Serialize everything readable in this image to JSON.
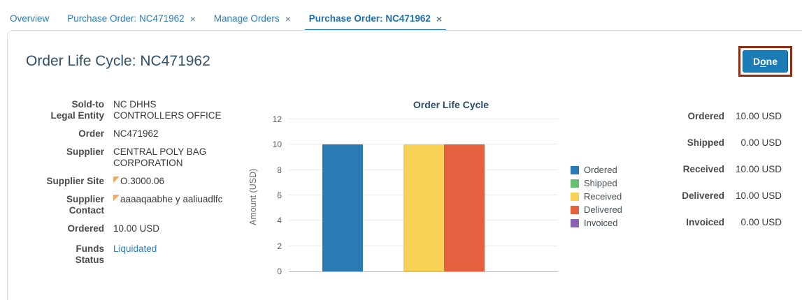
{
  "tabs": [
    {
      "label": "Overview",
      "closable": false,
      "active": false
    },
    {
      "label": "Purchase Order: NC471962",
      "closable": true,
      "active": false
    },
    {
      "label": "Manage Orders",
      "closable": true,
      "active": false
    },
    {
      "label": "Purchase Order: NC471962",
      "closable": true,
      "active": true
    }
  ],
  "icons": {
    "tab_close_glyph": "×",
    "flag_icon": "changed-indicator-triangle"
  },
  "header": {
    "title": "Order Life Cycle: NC471962",
    "done_prefix": "D",
    "done_accesskey": "o",
    "done_suffix": "ne"
  },
  "details": {
    "rows": [
      {
        "label": "Sold-to\nLegal Entity",
        "value": "NC DHHS\nCONTROLLERS OFFICE",
        "flag": false,
        "link": false
      },
      {
        "label": "Order",
        "value": "NC471962",
        "flag": false,
        "link": false
      },
      {
        "label": "Supplier",
        "value": "CENTRAL POLY BAG\nCORPORATION",
        "flag": false,
        "link": false
      },
      {
        "label": "Supplier Site",
        "value": "O.3000.06",
        "flag": true,
        "link": false
      },
      {
        "label": "Supplier\nContact",
        "value": "aaaaqaabhe y aaliuadlfc",
        "flag": true,
        "link": false
      },
      {
        "label": "Ordered",
        "value": "10.00 USD",
        "flag": false,
        "link": false
      },
      {
        "label": "Funds\nStatus",
        "value": "Liquidated",
        "flag": false,
        "link": true
      }
    ]
  },
  "chart_data": {
    "type": "bar",
    "title": "Order Life Cycle",
    "xlabel": "",
    "ylabel": "Amount (USD)",
    "categories": [
      ""
    ],
    "series": [
      {
        "name": "Ordered",
        "values": [
          10
        ],
        "color": "#2a7ab4"
      },
      {
        "name": "Shipped",
        "values": [
          0
        ],
        "color": "#68bf76"
      },
      {
        "name": "Received",
        "values": [
          10
        ],
        "color": "#f7d155"
      },
      {
        "name": "Delivered",
        "values": [
          10
        ],
        "color": "#e4613f"
      },
      {
        "name": "Invoiced",
        "values": [
          0
        ],
        "color": "#8a62b4"
      }
    ],
    "ylim": [
      0,
      12
    ],
    "yticks": [
      0,
      2,
      4,
      6,
      8,
      10,
      12
    ],
    "grid": true,
    "legend_position": "right"
  },
  "summary": {
    "rows": [
      {
        "label": "Ordered",
        "value": "10.00 USD"
      },
      {
        "label": "Shipped",
        "value": "0.00 USD"
      },
      {
        "label": "Received",
        "value": "10.00 USD"
      },
      {
        "label": "Delivered",
        "value": "10.00 USD"
      },
      {
        "label": "Invoiced",
        "value": "0.00 USD"
      }
    ]
  },
  "colors": {
    "tab_blue": "#2b7cb8",
    "active_tab_underline": "#1a7ab5",
    "title_navy": "#31506b",
    "done_button_bg": "#1c7cb5",
    "annotation_red": "#8e2c10",
    "link_blue": "#2b7cb8",
    "flag_orange": "#f2a765"
  }
}
